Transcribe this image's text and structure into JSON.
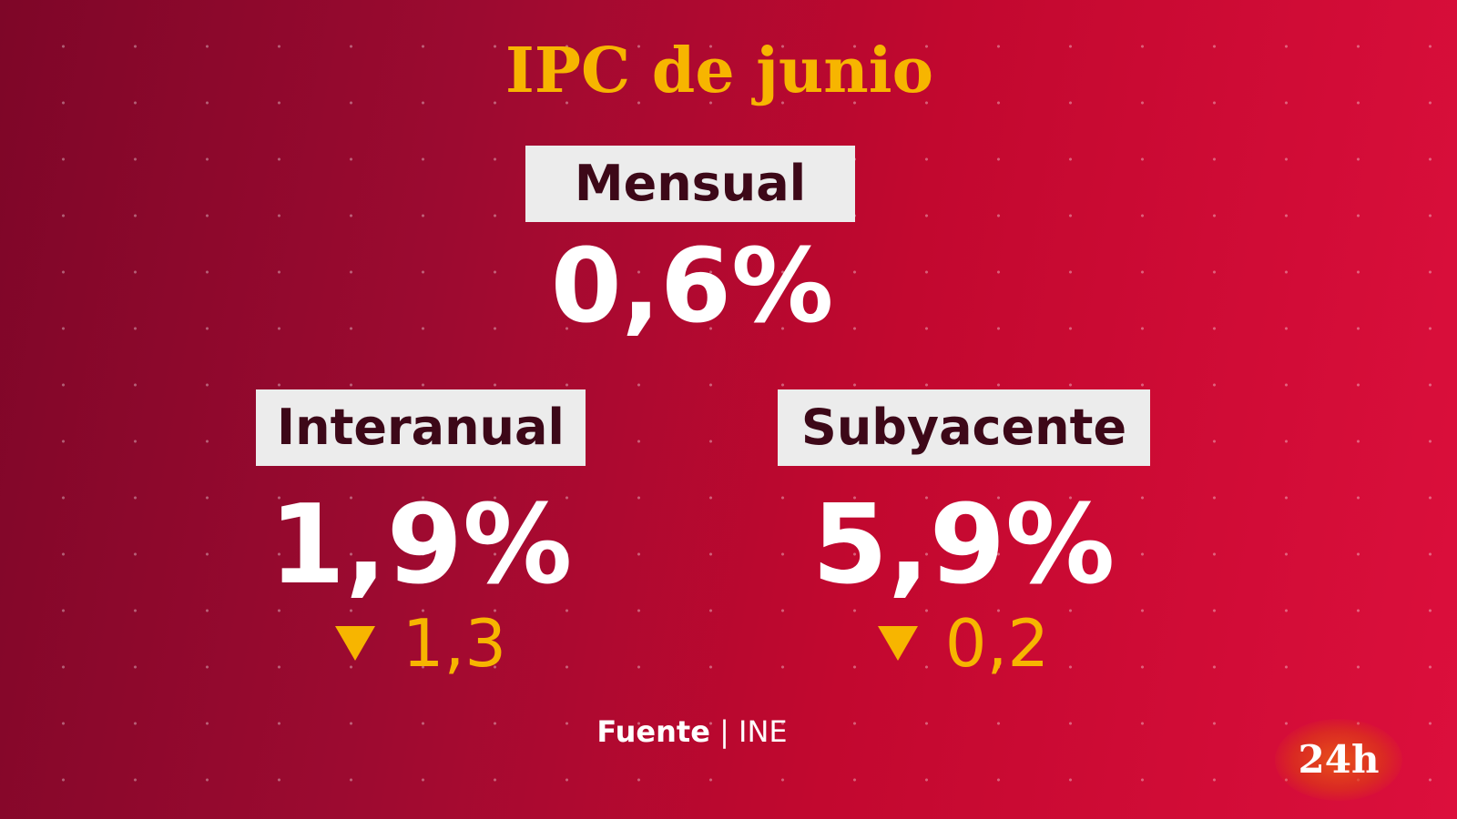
{
  "title": "IPC de junio",
  "mensual": {
    "label": "Mensual",
    "value": "0,6%"
  },
  "interanual": {
    "label": "Interanual",
    "value": "1,9%",
    "change": "1,3",
    "direction": "down"
  },
  "subyacente": {
    "label": "Subyacente",
    "value": "5,9%",
    "change": "0,2",
    "direction": "down"
  },
  "source": {
    "label": "Fuente",
    "separator": "|",
    "value": "INE"
  },
  "logo": "24h",
  "colors": {
    "accent": "#f7b500",
    "label_bg": "#ececec",
    "label_text": "#3d0818",
    "bg_dark": "#7e0628",
    "bg_light": "#dc0f3c"
  }
}
